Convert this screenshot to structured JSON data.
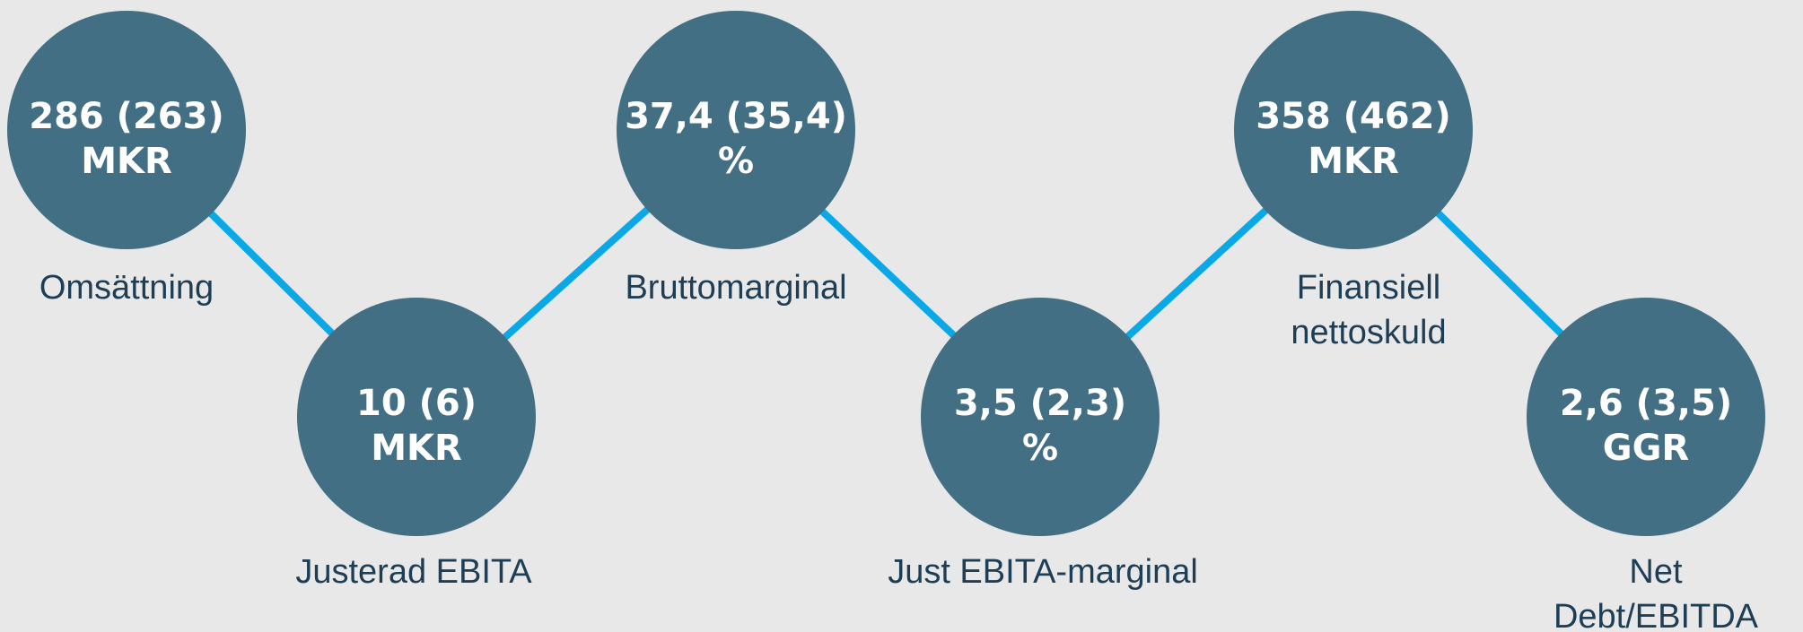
{
  "nodes": [
    {
      "value": "286 (263)",
      "unit": "MKR",
      "label": [
        "Omsättning"
      ]
    },
    {
      "value": "10 (6)",
      "unit": "MKR",
      "label": [
        "Justerad EBITA"
      ]
    },
    {
      "value": "37,4 (35,4)",
      "unit": "%",
      "label": [
        "Bruttomarginal"
      ]
    },
    {
      "value": "3,5 (2,3)",
      "unit": "%",
      "label": [
        "Just EBITA-marginal"
      ]
    },
    {
      "value": "358 (462)",
      "unit": "MKR",
      "label": [
        "Finansiell",
        "nettoskuld"
      ]
    },
    {
      "value": "2,6 (3,5)",
      "unit": "GGR",
      "label": [
        "Net",
        "Debt/EBITDA"
      ]
    }
  ]
}
